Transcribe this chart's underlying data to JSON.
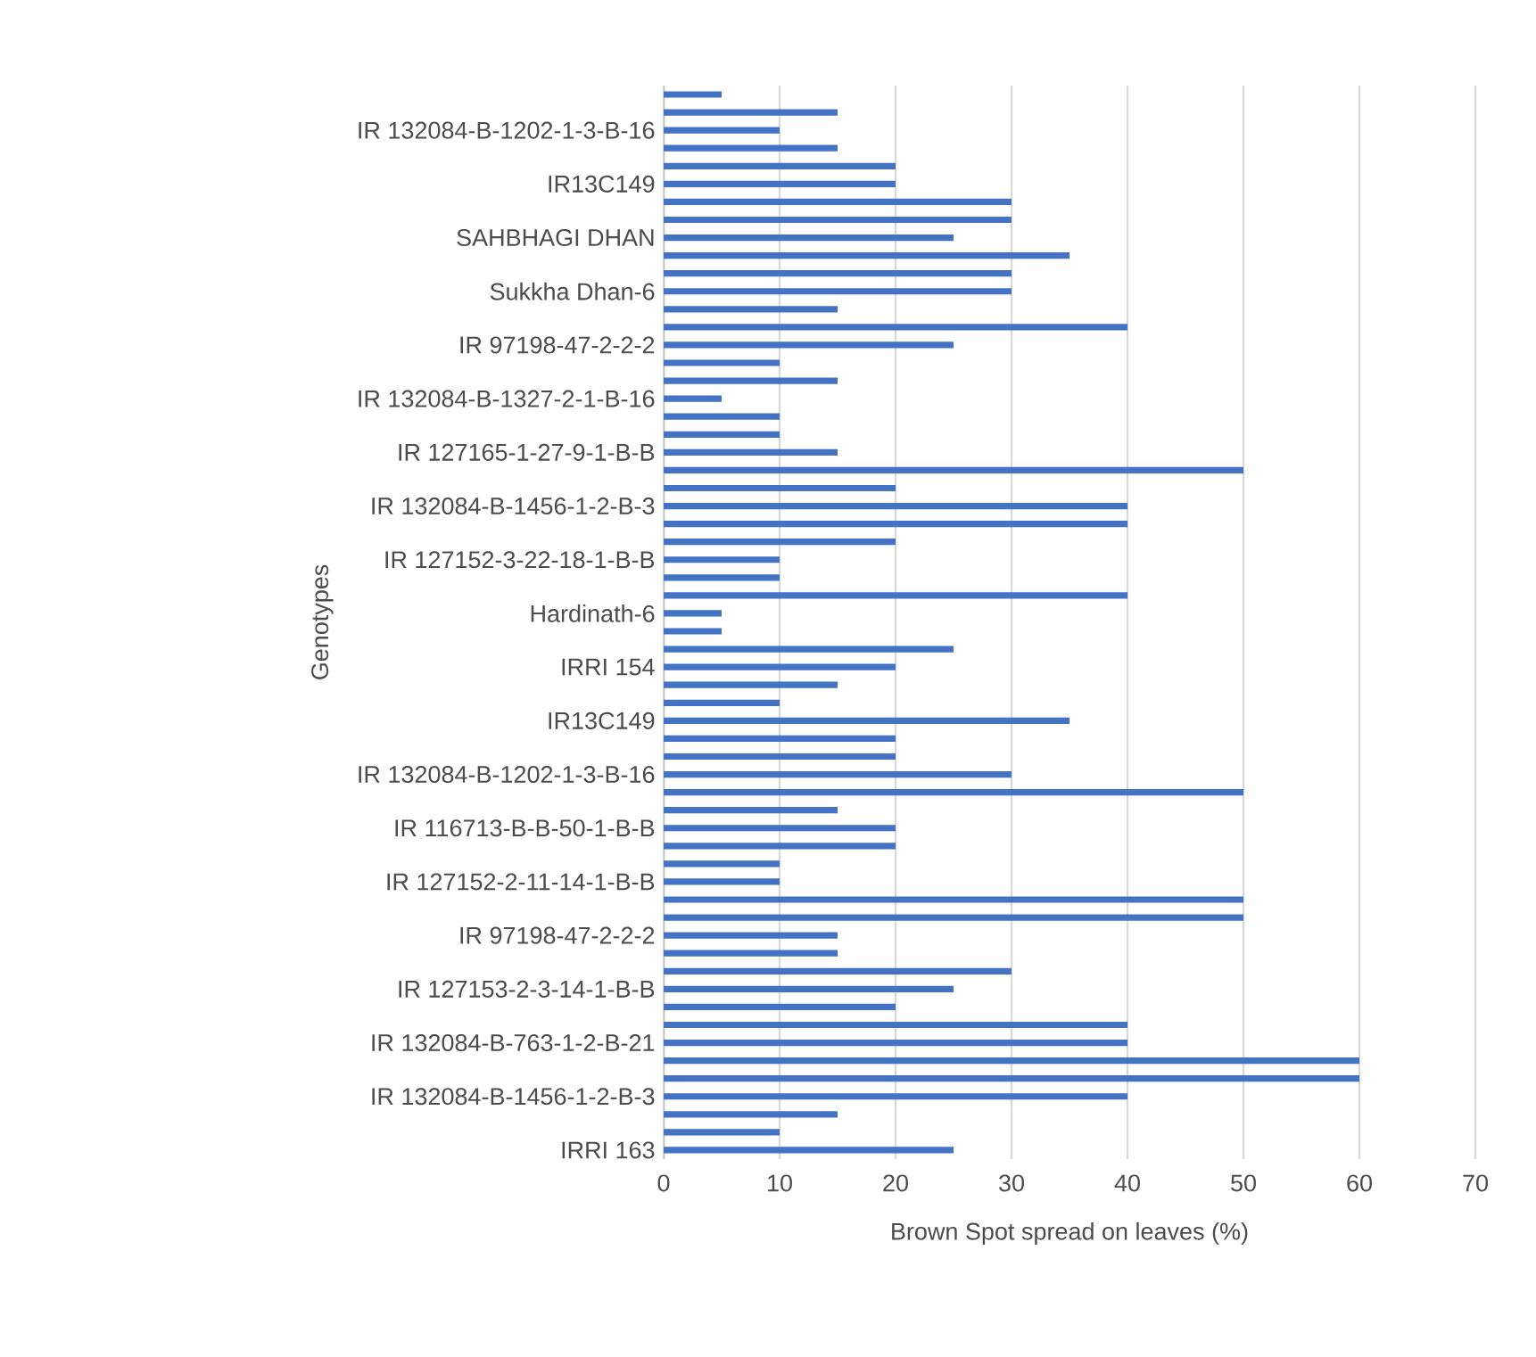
{
  "chart_data": {
    "type": "bar",
    "orientation": "horizontal",
    "xlabel": "Brown Spot spread on leaves (%)",
    "ylabel": "Genotypes",
    "categories": [
      null,
      null,
      "IR 132084-B-1202-1-3-B-16",
      null,
      null,
      "IR13C149",
      null,
      null,
      "SAHBHAGI DHAN",
      null,
      null,
      "Sukkha Dhan-6",
      null,
      null,
      "IR 97198-47-2-2-2",
      null,
      null,
      "IR 132084-B-1327-2-1-B-16",
      null,
      null,
      "IR 127165-1-27-9-1-B-B",
      null,
      null,
      "IR 132084-B-1456-1-2-B-3",
      null,
      null,
      "IR 127152-3-22-18-1-B-B",
      null,
      null,
      "Hardinath-6",
      null,
      null,
      "IRRI 154",
      null,
      null,
      "IR13C149",
      null,
      null,
      "IR 132084-B-1202-1-3-B-16",
      null,
      null,
      "IR 116713-B-B-50-1-B-B",
      null,
      null,
      "IR 127152-2-11-14-1-B-B",
      null,
      null,
      "IR 97198-47-2-2-2",
      null,
      null,
      "IR 127153-2-3-14-1-B-B",
      null,
      null,
      "IR 132084-B-763-1-2-B-21",
      null,
      null,
      "IR 132084-B-1456-1-2-B-3",
      null,
      null,
      "IRRI 163"
    ],
    "values": [
      5,
      15,
      10,
      15,
      20,
      20,
      30,
      30,
      25,
      35,
      30,
      30,
      15,
      40,
      25,
      10,
      15,
      5,
      10,
      10,
      15,
      50,
      20,
      40,
      40,
      20,
      10,
      10,
      40,
      5,
      5,
      25,
      20,
      15,
      10,
      35,
      20,
      20,
      30,
      50,
      15,
      20,
      20,
      10,
      10,
      50,
      50,
      15,
      15,
      30,
      25,
      20,
      40,
      40,
      60,
      60,
      40,
      15,
      10,
      25
    ],
    "color": "#4472c4",
    "xlim": [
      0,
      70
    ],
    "xticks": [
      0,
      10,
      20,
      30,
      40,
      50,
      60,
      70
    ],
    "grid": "x"
  }
}
